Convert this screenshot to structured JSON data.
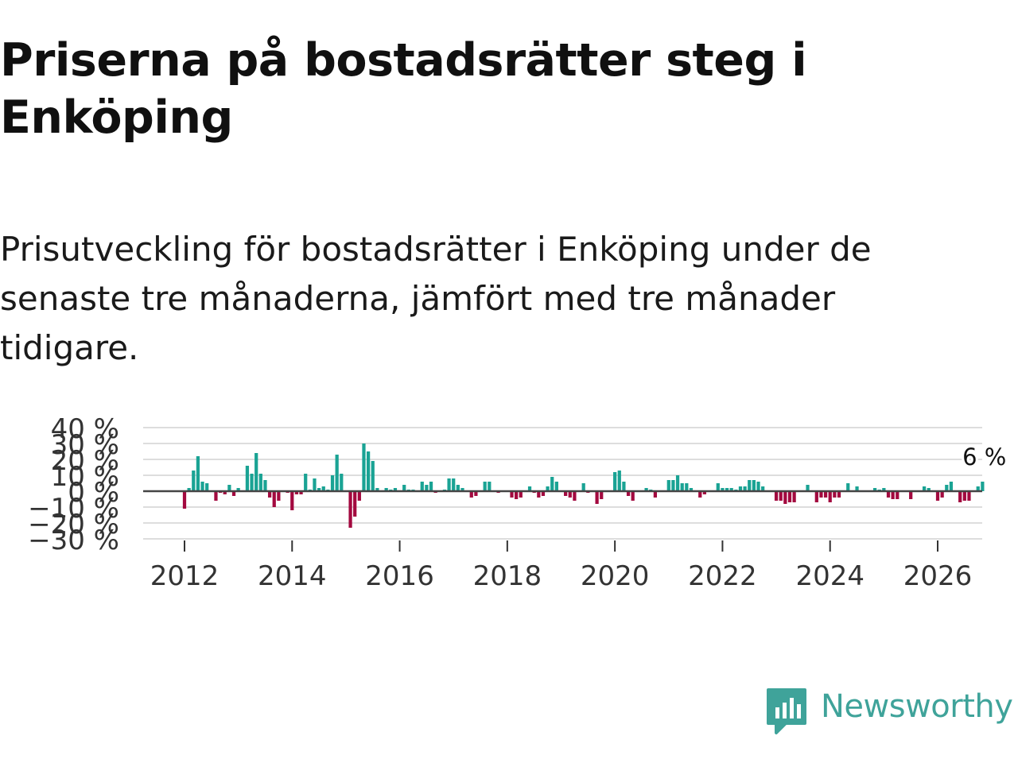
{
  "header": {
    "title": "Priserna på bostadsrätter steg i Enköping",
    "subtitle": "Prisutveckling för bostadsrätter i Enköping under de senaste tre månaderna, jämfört med tre månader tidigare."
  },
  "brand": {
    "name": "Newsworthy",
    "color": "#3fa39a"
  },
  "chart_data": {
    "type": "bar",
    "title": "Priserna på bostadsrätter steg i Enköping",
    "xlabel": "",
    "ylabel": "",
    "ylim": [
      -30,
      40
    ],
    "yticks": [
      40,
      30,
      20,
      10,
      0,
      -10,
      -20,
      -30
    ],
    "ytick_labels": [
      "40 %",
      "30 %",
      "20 %",
      "10 %",
      "0 %",
      "−10 %",
      "−20 %",
      "−30 %"
    ],
    "xticks": [
      2012,
      2014,
      2016,
      2018,
      2020,
      2022,
      2024,
      2026
    ],
    "xtick_labels": [
      "2012",
      "2014",
      "2016",
      "2018",
      "2020",
      "2022",
      "2024",
      "2026"
    ],
    "x_start": 2012.0,
    "x_step_months": 1,
    "positive_color": "#1aa394",
    "negative_color": "#a3093f",
    "last_value_label": "6 %",
    "values": [
      -11,
      2,
      13,
      22,
      6,
      5,
      0,
      -6,
      -1,
      -2,
      4,
      -3,
      2,
      0,
      16,
      11,
      24,
      11,
      7,
      -4,
      -10,
      -6,
      0,
      -1,
      -12,
      -2,
      -2,
      11,
      1,
      8,
      2,
      3,
      1,
      10,
      23,
      11,
      0,
      -23,
      -16,
      -6,
      30,
      25,
      19,
      2,
      0,
      2,
      1,
      2,
      0,
      4,
      1,
      1,
      0,
      6,
      4,
      6,
      -1,
      0,
      1,
      8,
      8,
      4,
      2,
      0,
      -4,
      -3,
      0,
      6,
      6,
      0,
      -1,
      0,
      0,
      -4,
      -5,
      -4,
      0,
      3,
      -1,
      -4,
      -3,
      3,
      9,
      6,
      0,
      -3,
      -4,
      -6,
      0,
      5,
      -1,
      0,
      -8,
      -5,
      0,
      0,
      12,
      13,
      6,
      -3,
      -6,
      0,
      0,
      2,
      1,
      -4,
      0,
      0,
      7,
      7,
      10,
      5,
      5,
      2,
      0,
      -4,
      -2,
      0,
      0,
      5,
      2,
      2,
      2,
      1,
      3,
      3,
      7,
      7,
      6,
      3,
      0,
      0,
      -6,
      -6,
      -8,
      -7,
      -7,
      0,
      0,
      4,
      0,
      -7,
      -4,
      -4,
      -7,
      -4,
      -4,
      0,
      5,
      0,
      3,
      0,
      0,
      0,
      2,
      1,
      2,
      -4,
      -5,
      -5,
      0,
      0,
      -5,
      0,
      0,
      3,
      2,
      0,
      -6,
      -4,
      4,
      6,
      0,
      -7,
      -6,
      -6,
      0,
      3,
      6
    ]
  }
}
